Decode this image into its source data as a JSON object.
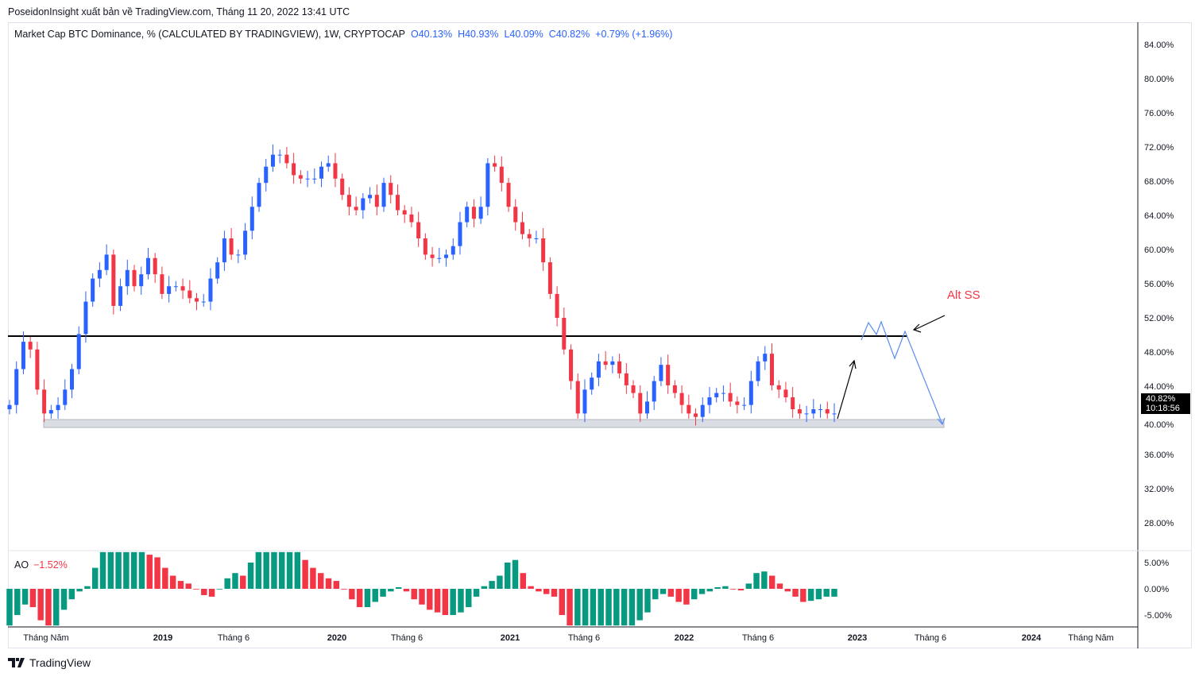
{
  "header": {
    "published": "PoseidonInsight xuất bản về TradingView.com, Tháng 11 20, 2022 13:41 UTC"
  },
  "legend": {
    "symbol": "Market Cap BTC Dominance, % (CALCULATED BY TRADINGVIEW), 1W, CRYPTOCAP",
    "open": "O40.13%",
    "high": "H40.93%",
    "low": "L40.09%",
    "close": "C40.82%",
    "change": "+0.79% (+1.96%)"
  },
  "price_tag": {
    "price": "40.82%",
    "countdown": "10:18:56"
  },
  "annotation": {
    "label": "Alt SS"
  },
  "ao": {
    "label": "AO",
    "value": "−1.52%"
  },
  "footer": {
    "brand": "TradingView"
  },
  "colors": {
    "up": "#2962ff",
    "down": "#f23645",
    "ao_up": "#089981",
    "ao_down": "#f23645"
  },
  "chart_data": {
    "type": "candlestick",
    "title": "Market Cap BTC Dominance, %",
    "interval": "1W",
    "ylabel": "%",
    "ylim": [
      25,
      86
    ],
    "yticks": [
      "84.00%",
      "80.00%",
      "76.00%",
      "72.00%",
      "68.00%",
      "64.00%",
      "60.00%",
      "56.00%",
      "52.00%",
      "48.00%",
      "44.00%",
      "40.00%",
      "36.00%",
      "32.00%",
      "28.00%"
    ],
    "ytick_values": [
      84,
      80,
      76,
      72,
      68,
      64,
      60,
      56,
      52,
      48,
      44,
      40,
      36,
      32,
      28
    ],
    "xticks": [
      {
        "label": "Tháng Năm",
        "bold": false
      },
      {
        "label": "2019",
        "bold": true
      },
      {
        "label": "Tháng 6",
        "bold": false
      },
      {
        "label": "2020",
        "bold": true
      },
      {
        "label": "Tháng 6",
        "bold": false
      },
      {
        "label": "2021",
        "bold": true
      },
      {
        "label": "Tháng 6",
        "bold": false
      },
      {
        "label": "2022",
        "bold": true
      },
      {
        "label": "Tháng 6",
        "bold": false
      },
      {
        "label": "2023",
        "bold": true
      },
      {
        "label": "Tháng 6",
        "bold": false
      },
      {
        "label": "2024",
        "bold": true
      },
      {
        "label": "Tháng Năm",
        "bold": false
      }
    ],
    "closes_biweekly": [
      41.8,
      46,
      49.2,
      48.3,
      43.6,
      40.8,
      41.2,
      41.8,
      43.6,
      46,
      50.1,
      53.9,
      56.6,
      57.6,
      59.4,
      53.4,
      55.7,
      57.6,
      55.7,
      57.1,
      59,
      57.1,
      54.8,
      55.7,
      55.7,
      55.2,
      54.3,
      53.9,
      53.9,
      56.6,
      58.5,
      61.3,
      59.4,
      59.4,
      62.2,
      65,
      67.8,
      69.7,
      71.1,
      71.1,
      70.1,
      68.7,
      68.3,
      68.3,
      68.3,
      69.7,
      70.1,
      68.3,
      66.4,
      65,
      64.6,
      66,
      66.4,
      65,
      67.8,
      66.4,
      64.6,
      64.1,
      63.2,
      61.3,
      59.4,
      59,
      59,
      59.4,
      60.4,
      63.2,
      65,
      63.6,
      65,
      70.1,
      69.7,
      67.8,
      65,
      63.2,
      61.8,
      61.3,
      61.3,
      58.5,
      54.8,
      52,
      48.3,
      44.6,
      40.8,
      43.6,
      45,
      46.9,
      46.5,
      46.9,
      45.5,
      44.1,
      43.2,
      40.8,
      42.2,
      44.6,
      46.5,
      44.1,
      43.2,
      41.8,
      40.8,
      40.4,
      41.8,
      42.7,
      43.2,
      43.2,
      42.2,
      41.8,
      41.8,
      44.6,
      46.9,
      47.8,
      44.1,
      43.6,
      42.7,
      41.3,
      40.8,
      40.8,
      41.3,
      41.3,
      40.8,
      40.8
    ],
    "hline": 50,
    "support_zone": [
      39.2,
      40.1
    ],
    "indicator": {
      "name": "AO",
      "yticks": [
        "5.00%",
        "0.00%",
        "-5.00%"
      ],
      "ytick_values": [
        5,
        0,
        -5
      ],
      "values": [
        -7,
        -5,
        -3,
        -3.5,
        -6,
        -7,
        -7,
        -4,
        -2,
        -0.5,
        0.5,
        4,
        7,
        7,
        7,
        7,
        7,
        7,
        6.5,
        6,
        4,
        2.5,
        1.5,
        1,
        0,
        -1.2,
        -1.5,
        0,
        2,
        3,
        2.5,
        5,
        7,
        7,
        7,
        7,
        7,
        7,
        5.5,
        4,
        3,
        2,
        1.5,
        0,
        -2,
        -3.5,
        -3.5,
        -2.5,
        -1.5,
        -0.5,
        0.3,
        -0.5,
        -2,
        -3,
        -4,
        -4.5,
        -5,
        -5,
        -4.5,
        -3.5,
        -1.5,
        0.5,
        1.5,
        2.5,
        5,
        5.5,
        3,
        0.5,
        -0.5,
        -1,
        -1.5,
        -5,
        -7,
        -7,
        -7,
        -7,
        -7,
        -7,
        -7,
        -7,
        -7,
        -6,
        -4.5,
        -2,
        -1,
        -1.5,
        -2.5,
        -3,
        -2,
        -1,
        -0.5,
        0.3,
        0.5,
        0,
        -0.3,
        1,
        3,
        3.3,
        2.5,
        1,
        -0.5,
        -1.5,
        -2.5,
        -2.3,
        -2,
        -1.5,
        -1.5
      ]
    }
  }
}
